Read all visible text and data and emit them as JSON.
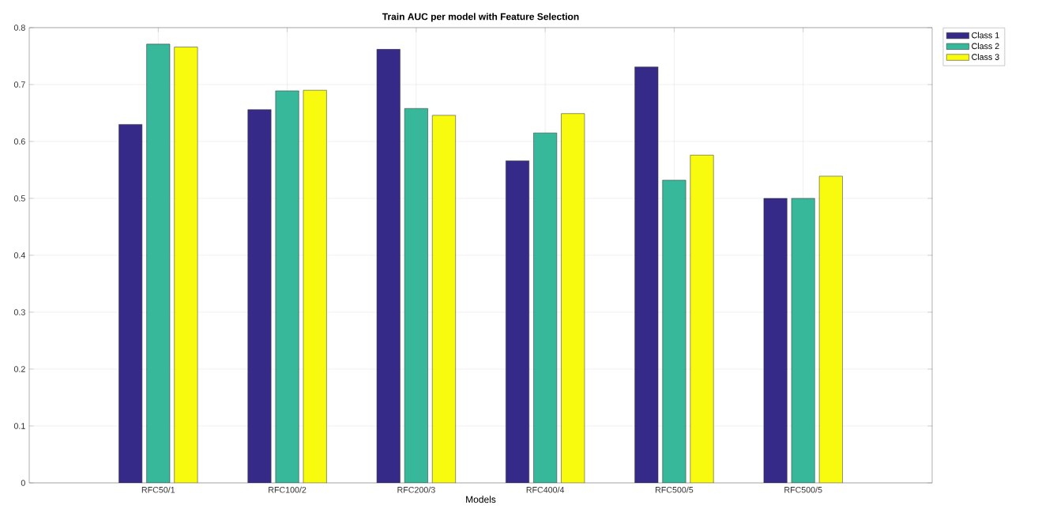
{
  "chart_data": {
    "type": "bar",
    "title": "Train AUC per model with Feature Selection",
    "xlabel": "Models",
    "categories": [
      "RFC50/1",
      "RFC100/2",
      "RFC200/3",
      "RFC400/4",
      "RFC500/5",
      "RFC500/5"
    ],
    "series": [
      {
        "name": "Class 1",
        "color": "#352a87",
        "values": [
          0.63,
          0.656,
          0.762,
          0.566,
          0.731,
          0.5
        ]
      },
      {
        "name": "Class 2",
        "color": "#38b89a",
        "values": [
          0.771,
          0.689,
          0.658,
          0.615,
          0.532,
          0.5
        ]
      },
      {
        "name": "Class 3",
        "color": "#f9fb0e",
        "values": [
          0.766,
          0.69,
          0.646,
          0.649,
          0.576,
          0.539
        ]
      }
    ],
    "ylim": [
      0,
      0.8
    ],
    "yticks": [
      0,
      0.1,
      0.2,
      0.3,
      0.4,
      0.5,
      0.6,
      0.7,
      0.8
    ],
    "grid": true,
    "legend": "top right"
  }
}
